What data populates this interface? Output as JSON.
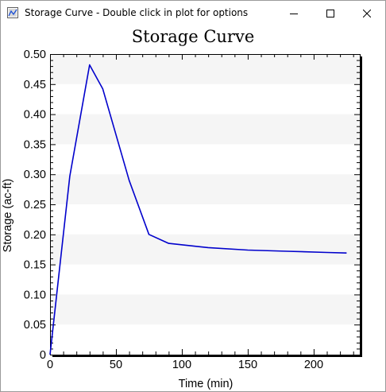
{
  "window": {
    "title": "Storage Curve - Double click in plot for options",
    "icon": "chart-app-icon",
    "controls": [
      "minimize-icon",
      "maximize-icon",
      "close-icon"
    ]
  },
  "chart_data": {
    "type": "line",
    "title": "Storage Curve",
    "xlabel": "Time (min)",
    "ylabel": "Storage (ac-ft)",
    "xlim": [
      0,
      235
    ],
    "ylim": [
      0,
      0.5
    ],
    "xticks": [
      0,
      50,
      100,
      150,
      200
    ],
    "xtick_labels": [
      "0",
      "50",
      "100",
      "150",
      "200"
    ],
    "yticks": [
      0,
      0.05,
      0.1,
      0.15,
      0.2,
      0.25,
      0.3,
      0.35,
      0.4,
      0.45,
      0.5
    ],
    "ytick_labels": [
      "0",
      "0.05",
      "0.10",
      "0.15",
      "0.20",
      "0.25",
      "0.30",
      "0.35",
      "0.40",
      "0.45",
      "0.50"
    ],
    "grid": "alternating horizontal bands",
    "series": [
      {
        "color": "#0000cc",
        "x": [
          0,
          15,
          30,
          40,
          60,
          75,
          90,
          120,
          150,
          180,
          210,
          225
        ],
        "y": [
          0,
          0.297,
          0.482,
          0.442,
          0.29,
          0.2,
          0.185,
          0.178,
          0.174,
          0.172,
          0.17,
          0.169
        ]
      }
    ],
    "band_color": "#f5f5f5",
    "frame_shadow_color": "#000000"
  }
}
